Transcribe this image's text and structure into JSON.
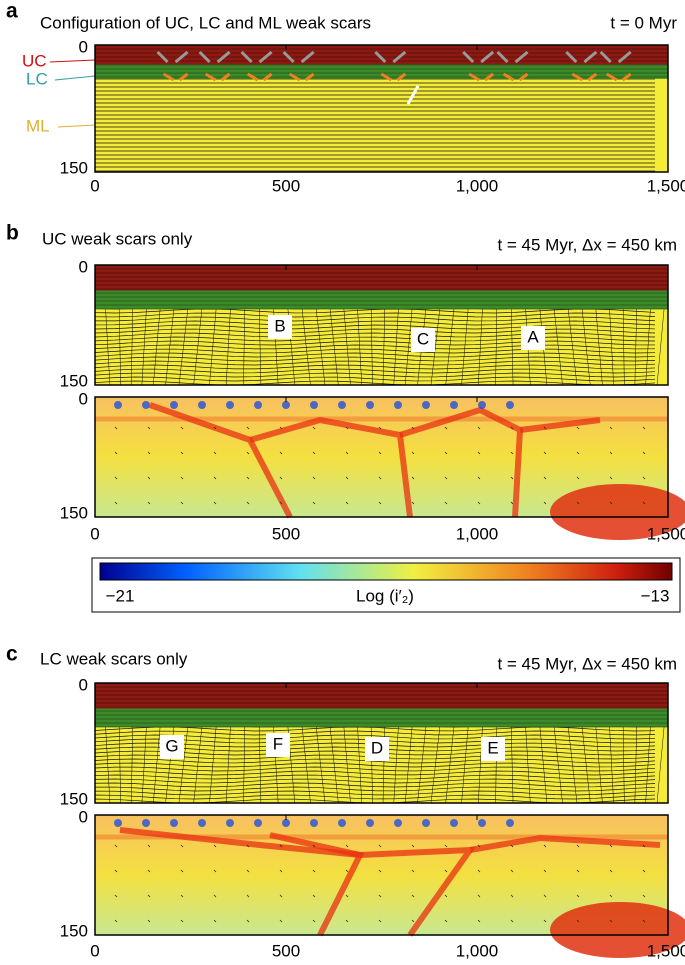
{
  "panels": [
    {
      "label": "a",
      "title": "Configuration of UC, LC and ML weak scars",
      "time": "t = 0 Myr",
      "layers": [
        "UC",
        "LC",
        "ML"
      ]
    },
    {
      "label": "b",
      "title": "UC weak scars only",
      "time": "t = 45 Myr, Δx = 450 km",
      "markers": [
        "B",
        "C",
        "A"
      ]
    },
    {
      "label": "c",
      "title": "LC weak scars only",
      "time": "t = 45 Myr, Δx = 450 km",
      "markers": [
        "G",
        "F",
        "D",
        "E"
      ]
    }
  ],
  "yticks": [
    "0",
    "150"
  ],
  "xaxis": {
    "xlim": [
      0,
      1500
    ],
    "ticks": [
      {
        "value": 0,
        "label": "0"
      },
      {
        "value": 500,
        "label": "500"
      },
      {
        "value": 1000,
        "label": "1,000"
      },
      {
        "value": 1500,
        "label": "1,500"
      }
    ]
  },
  "colorbar": {
    "min": "−21",
    "max": "−13",
    "label": "Log (i′₂)"
  }
}
